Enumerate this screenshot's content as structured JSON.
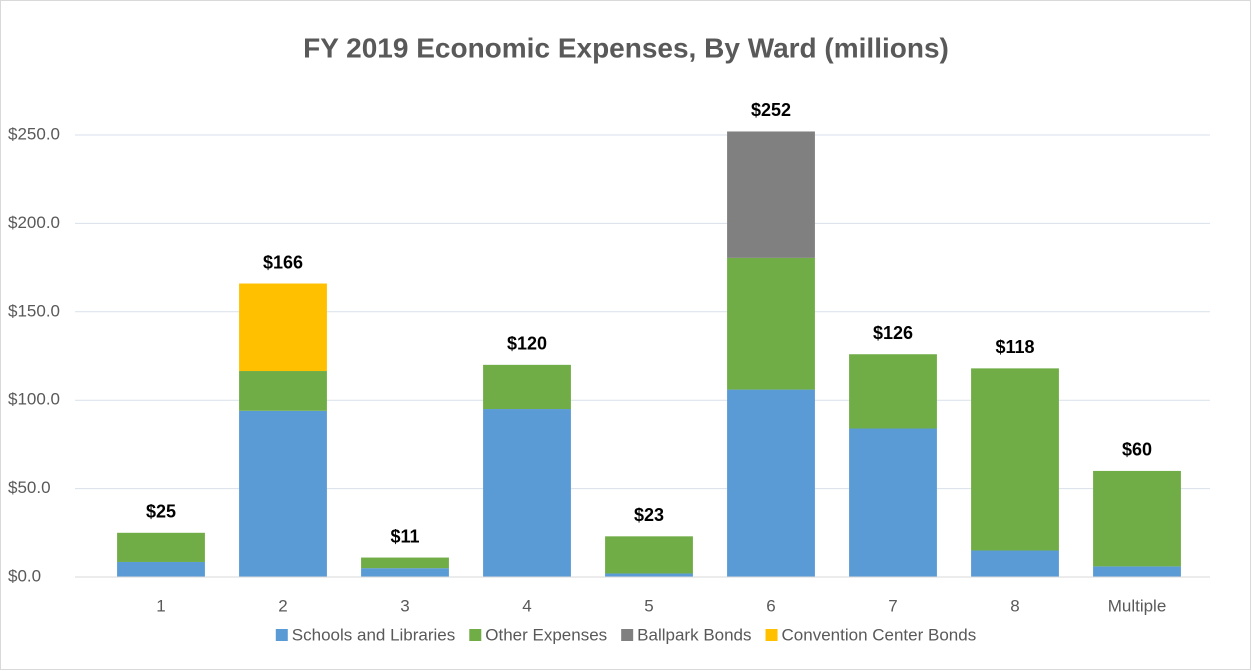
{
  "chart_data": {
    "type": "stacked_bar",
    "title": "FY 2019 Economic Expenses, By Ward (millions)",
    "categories": [
      "1",
      "2",
      "3",
      "4",
      "5",
      "6",
      "7",
      "8",
      "Multiple"
    ],
    "series": [
      {
        "name": "Schools and Libraries",
        "color": "#5b9bd5",
        "values": [
          8.5,
          94,
          5,
          95,
          2,
          106,
          84,
          15,
          6
        ]
      },
      {
        "name": "Other Expenses",
        "color": "#70ad47",
        "values": [
          16.5,
          22.5,
          6,
          25,
          21,
          74.5,
          42,
          103,
          54
        ]
      },
      {
        "name": "Ballpark Bonds",
        "color": "#808080",
        "values": [
          0,
          0,
          0,
          0,
          0,
          71.5,
          0,
          0,
          0
        ]
      },
      {
        "name": "Convention Center Bonds",
        "color": "#ffc000",
        "values": [
          0,
          49.5,
          0,
          0,
          0,
          0,
          0,
          0,
          0
        ]
      }
    ],
    "total_labels": [
      "$25",
      "$166",
      "$11",
      "$120",
      "$23",
      "$252",
      "$126",
      "$118",
      "$60"
    ],
    "ylim": [
      0,
      250
    ],
    "yticks": [
      {
        "value": 0,
        "label": "$0.0"
      },
      {
        "value": 50,
        "label": "$50.0"
      },
      {
        "value": 100,
        "label": "$100.0"
      },
      {
        "value": 150,
        "label": "$150.0"
      },
      {
        "value": 200,
        "label": "$200.0"
      },
      {
        "value": 250,
        "label": "$250.0"
      }
    ],
    "grid": true,
    "legend": "bottom"
  }
}
